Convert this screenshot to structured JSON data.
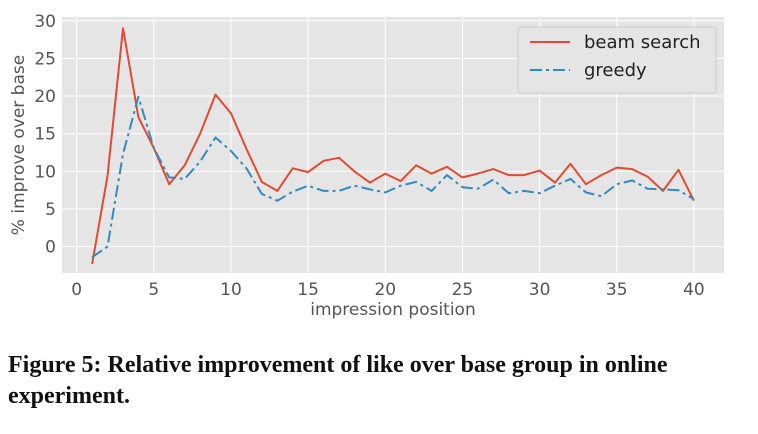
{
  "caption": "Figure 5: Relative improvement of like over base group in online experiment.",
  "chart_data": {
    "type": "line",
    "title": "",
    "xlabel": "impression position",
    "ylabel": "% improve over base",
    "xlim": [
      -0.95,
      41.95
    ],
    "ylim": [
      -3.5,
      30.5
    ],
    "xticks": [
      0,
      5,
      10,
      15,
      20,
      25,
      30,
      35,
      40
    ],
    "yticks": [
      0,
      5,
      10,
      15,
      20,
      25,
      30
    ],
    "grid": true,
    "legend_position": "top-right",
    "series": [
      {
        "name": "beam search",
        "color": "#e24a33",
        "style": "solid",
        "x": [
          1,
          2,
          3,
          4,
          5,
          6,
          7,
          8,
          9,
          10,
          11,
          12,
          13,
          14,
          15,
          16,
          17,
          18,
          19,
          20,
          21,
          22,
          23,
          24,
          25,
          26,
          27,
          28,
          29,
          30,
          31,
          32,
          33,
          34,
          35,
          36,
          37,
          38,
          39,
          40
        ],
        "y": [
          -2.3,
          9.4,
          29.0,
          17.2,
          13.1,
          8.3,
          10.8,
          15.0,
          20.2,
          17.7,
          13.0,
          8.6,
          7.4,
          10.4,
          9.9,
          11.4,
          11.8,
          10.0,
          8.5,
          9.7,
          8.7,
          10.8,
          9.7,
          10.6,
          9.2,
          9.7,
          10.3,
          9.5,
          9.5,
          10.1,
          8.5,
          11.0,
          8.3,
          9.5,
          10.5,
          10.3,
          9.3,
          7.4,
          10.2,
          6.1
        ]
      },
      {
        "name": "greedy",
        "color": "#348abd",
        "style": "dashdot",
        "x": [
          1,
          2,
          3,
          4,
          5,
          6,
          7,
          8,
          9,
          10,
          11,
          12,
          13,
          14,
          15,
          16,
          17,
          18,
          19,
          20,
          21,
          22,
          23,
          24,
          25,
          26,
          27,
          28,
          29,
          30,
          31,
          32,
          33,
          34,
          35,
          36,
          37,
          38,
          39,
          40
        ],
        "y": [
          -1.4,
          0.0,
          12.3,
          19.9,
          13.1,
          9.2,
          9.0,
          11.3,
          14.5,
          12.7,
          10.4,
          7.0,
          6.1,
          7.3,
          8.1,
          7.4,
          7.4,
          8.1,
          7.6,
          7.2,
          8.1,
          8.6,
          7.4,
          9.5,
          7.9,
          7.7,
          8.9,
          7.1,
          7.4,
          7.1,
          8.1,
          9.0,
          7.2,
          6.7,
          8.3,
          8.8,
          7.7,
          7.6,
          7.5,
          6.3
        ]
      }
    ]
  }
}
